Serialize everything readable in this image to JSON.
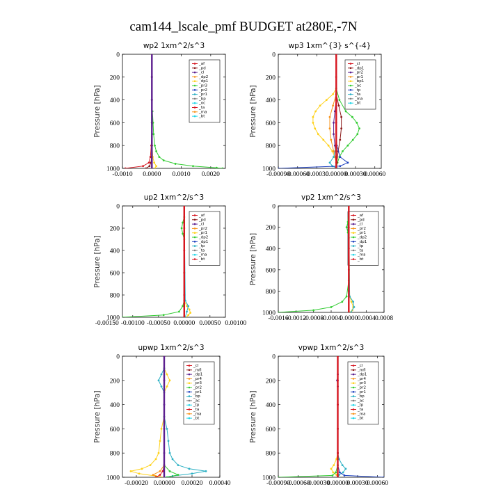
{
  "title": "cam144_lscale_pmf  BUDGET at280E,-7N",
  "colors": {
    "purple": "#5c1f8f",
    "red": "#d6151f",
    "orange": "#f7941d",
    "gold": "#ffd21a",
    "green": "#33cc33",
    "blue": "#1c3fbf",
    "teal": "#2bb0c4",
    "gray": "#808080",
    "cyan": "#20d6e8",
    "darkred": "#8b1a1a"
  },
  "chart_data": [
    {
      "type": "line",
      "title": "wp2   1xm^2/s^3",
      "ylabel": "Pressure [hPa]",
      "xlim": [
        -0.001,
        0.0025
      ],
      "ylim": [
        1000,
        0
      ],
      "xticks": [
        "-0.0010",
        "0.0000",
        "0.0010",
        "0.0020"
      ],
      "xtick_values": [
        -0.001,
        0,
        0.001,
        0.002
      ],
      "yticks": [
        "0",
        "200",
        "400",
        "600",
        "800",
        "1000"
      ],
      "legend_box": "top-right",
      "legend": [
        "_af",
        "_pd",
        "_cl",
        "_dp2",
        "_dp1",
        "_pr3",
        "_pr2",
        "_pr1",
        "_bp",
        "_oc",
        "_ta",
        "_ma",
        "_bt"
      ],
      "series": [
        {
          "name": "_pr1",
          "color": "#33cc33",
          "p": [
            0,
            200,
            400,
            500,
            600,
            700,
            800,
            850,
            900,
            930,
            960,
            980,
            995,
            1000
          ],
          "x": [
            0,
            0,
            0,
            2e-05,
            4e-05,
            6e-05,
            0.0001,
            0.00015,
            0.00025,
            0.0004,
            0.0008,
            0.0014,
            0.0022,
            0.0024
          ]
        },
        {
          "name": "_af",
          "color": "#d6151f",
          "p": [
            0,
            200,
            400,
            600,
            800,
            900,
            950,
            980,
            1000
          ],
          "x": [
            0,
            0,
            0,
            0,
            -2e-05,
            -5e-05,
            -0.0001,
            -0.0003,
            -0.0009
          ]
        },
        {
          "name": "_pr2",
          "color": "#ffd21a",
          "p": [
            0,
            600,
            800,
            900,
            950,
            980,
            1000
          ],
          "x": [
            0,
            0,
            1e-05,
            3e-05,
            8e-05,
            0.00015,
            0.0001
          ]
        },
        {
          "name": "_pd",
          "color": "#8b1a1a",
          "p": [
            0,
            800,
            900,
            950,
            980,
            1000
          ],
          "x": [
            0,
            0,
            -1e-05,
            -3e-05,
            -8e-05,
            -0.0002
          ]
        },
        {
          "name": "_dp2",
          "color": "#5c1f8f",
          "p": [
            0,
            200,
            400,
            600,
            800,
            1000
          ],
          "x": [
            0,
            0,
            0,
            0,
            0,
            0
          ]
        }
      ]
    },
    {
      "type": "line",
      "title": "wp3   1xm^{3} s^{-4}",
      "ylabel": "Pressure [hPa]",
      "xlim": [
        -0.0009,
        0.0007
      ],
      "ylim": [
        1000,
        0
      ],
      "xticks": [
        "-0.00090",
        "-0.00060",
        "-0.00030",
        "0.00000",
        "0.00030",
        "0.00060"
      ],
      "xtick_values": [
        -0.0009,
        -0.0006,
        -0.0003,
        0,
        0.0003,
        0.0006
      ],
      "yticks": [
        "0",
        "200",
        "400",
        "600",
        "800",
        "1000"
      ],
      "legend_box": "top-right",
      "legend": [
        "_cl",
        "_dp1",
        "_pr2",
        "_pr1",
        "_bp1",
        "_ac",
        "_tp",
        "_ta",
        "_ma",
        "_bt"
      ],
      "series": [
        {
          "name": "_pr2",
          "color": "#ffd21a",
          "p": [
            0,
            300,
            350,
            400,
            450,
            500,
            550,
            600,
            650,
            700,
            750,
            800,
            850,
            900,
            950,
            1000
          ],
          "x": [
            0,
            0,
            -5e-05,
            -0.00015,
            -0.00025,
            -0.00032,
            -0.00036,
            -0.00036,
            -0.00033,
            -0.00028,
            -0.0002,
            -0.00012,
            -6e-05,
            -2e-05,
            0,
            0
          ]
        },
        {
          "name": "_pr1",
          "color": "#f7941d",
          "p": [
            0,
            350,
            450,
            550,
            650,
            750,
            850,
            950,
            1000
          ],
          "x": [
            0,
            0,
            -5e-05,
            -0.0001,
            -0.0001,
            -8e-05,
            -4e-05,
            0,
            0
          ]
        },
        {
          "name": "_ac",
          "color": "#33cc33",
          "p": [
            0,
            300,
            400,
            500,
            550,
            600,
            650,
            700,
            750,
            800,
            850,
            900,
            950,
            1000
          ],
          "x": [
            0,
            0,
            5e-05,
            0.00015,
            0.00025,
            0.00032,
            0.00036,
            0.00033,
            0.00026,
            0.00018,
            0.0001,
            5e-05,
            2e-05,
            0
          ]
        },
        {
          "name": "_dp1",
          "color": "#8b1a1a",
          "p": [
            0,
            350,
            450,
            550,
            650,
            750,
            850,
            950,
            1000
          ],
          "x": [
            0,
            0,
            4e-05,
            8e-05,
            8e-05,
            6e-05,
            3e-05,
            1e-05,
            0
          ]
        },
        {
          "name": "_cl",
          "color": "#5c1f8f",
          "p": [
            0,
            400,
            500,
            600,
            700,
            800,
            900,
            1000
          ],
          "x": [
            0,
            0,
            -2e-05,
            -4e-05,
            -4e-05,
            -2e-05,
            0,
            0
          ]
        },
        {
          "name": "_tp",
          "color": "#2bb0c4",
          "p": [
            0,
            800,
            900,
            950,
            980,
            1000
          ],
          "x": [
            0,
            0,
            -4e-05,
            -0.0001,
            -6e-05,
            2e-05
          ]
        },
        {
          "name": "_ta",
          "color": "#1c3fbf",
          "p": [
            0,
            600,
            800,
            900,
            950,
            980,
            1000
          ],
          "x": [
            0,
            0,
            1e-05,
            6e-05,
            0.00018,
            6e-05,
            -0.0009
          ]
        },
        {
          "name": "_bp1",
          "color": "#d6151f",
          "p": [
            0,
            200,
            400,
            600,
            800,
            1000
          ],
          "x": [
            0,
            0,
            0,
            0,
            0,
            0
          ]
        }
      ]
    },
    {
      "type": "line",
      "title": "up2   1xm^2/s^3",
      "ylabel": "Pressure [hPa]",
      "xlim": [
        -0.0012,
        0.0008
      ],
      "ylim": [
        1000,
        0
      ],
      "xticks": [
        "-0.00150",
        "-0.00100",
        "-0.00050",
        "0.00000",
        "0.00050",
        "0.00100"
      ],
      "xtick_values": [
        -0.0015,
        -0.001,
        -0.0005,
        0,
        0.0005,
        0.001
      ],
      "yticks": [
        "0",
        "200",
        "400",
        "600",
        "800",
        "1000"
      ],
      "legend_box": "top-right",
      "legend": [
        "_af",
        "_pd",
        "_cl",
        "_pr2",
        "_pr1",
        "_dp2",
        "_dp1",
        "_tp",
        "_ta",
        "_ma",
        "_bt"
      ],
      "series": [
        {
          "name": "_dp2",
          "color": "#33cc33",
          "p": [
            0,
            100,
            150,
            200,
            250,
            300,
            600,
            850,
            900,
            950,
            980,
            1000
          ],
          "x": [
            0,
            0,
            -3e-05,
            -5e-05,
            -3e-05,
            0,
            0,
            0,
            -3e-05,
            -0.0001,
            -0.0004,
            -0.0012
          ]
        },
        {
          "name": "_pr1",
          "color": "#ffd21a",
          "p": [
            0,
            850,
            900,
            930,
            960,
            980,
            1000
          ],
          "x": [
            0,
            0,
            5e-05,
            0.0001,
            0.00012,
            8e-05,
            4e-05
          ]
        },
        {
          "name": "_tp",
          "color": "#2bb0c4",
          "p": [
            0,
            850,
            900,
            950,
            1000
          ],
          "x": [
            0,
            2e-05,
            8e-05,
            5e-05,
            2e-05
          ]
        },
        {
          "name": "_pd",
          "color": "#d6151f",
          "p": [
            0,
            200,
            400,
            600,
            800,
            1000
          ],
          "x": [
            0,
            0,
            0,
            0,
            0,
            0
          ]
        }
      ]
    },
    {
      "type": "line",
      "title": "vp2   1xm^2/s^3",
      "ylabel": "Pressure [hPa]",
      "xlim": [
        -0.0016,
        0.0008
      ],
      "ylim": [
        1000,
        0
      ],
      "xticks": [
        "-0.0016",
        "-0.0012",
        "-0.0008",
        "-0.0004",
        "0.0000",
        "0.0004",
        "0.0008"
      ],
      "xtick_values": [
        -0.0016,
        -0.0012,
        -0.0008,
        -0.0004,
        0,
        0.0004,
        0.0008
      ],
      "yticks": [
        "0",
        "200",
        "400",
        "600",
        "800",
        "1000"
      ],
      "legend_box": "top-right",
      "legend": [
        "_af",
        "_pd",
        "_cl",
        "_pr2",
        "_pr1",
        "_dp2",
        "_dp1",
        "_tp",
        "_ta",
        "_ma",
        "_bt"
      ],
      "series": [
        {
          "name": "_dp2",
          "color": "#33cc33",
          "p": [
            0,
            150,
            200,
            250,
            300,
            700,
            850,
            900,
            950,
            980,
            1000
          ],
          "x": [
            0,
            -2e-05,
            -5e-05,
            -2e-05,
            0,
            0,
            -5e-05,
            -0.00015,
            -0.0004,
            -0.0008,
            -0.0016
          ]
        },
        {
          "name": "_pr1",
          "color": "#ffd21a",
          "p": [
            0,
            850,
            900,
            950,
            980,
            1000
          ],
          "x": [
            0,
            2e-05,
            6e-05,
            0.0001,
            8e-05,
            3e-05
          ]
        },
        {
          "name": "_tp",
          "color": "#2bb0c4",
          "p": [
            0,
            850,
            900,
            950,
            1000
          ],
          "x": [
            0,
            2e-05,
            0.0001,
            0.00012,
            5e-05
          ]
        },
        {
          "name": "_pd",
          "color": "#d6151f",
          "p": [
            0,
            200,
            400,
            600,
            800,
            1000
          ],
          "x": [
            0,
            0,
            0,
            0,
            0,
            0
          ]
        }
      ]
    },
    {
      "type": "line",
      "title": "upwp   1xm^2/s^3",
      "ylabel": "Pressure [hPa]",
      "xlim": [
        -0.0003,
        0.0004
      ],
      "ylim": [
        1000,
        0
      ],
      "xticks": [
        "-0.00020",
        "0.00000",
        "0.00020",
        "0.00040"
      ],
      "xtick_values": [
        -0.0002,
        0,
        0.0002,
        0.0004
      ],
      "yticks": [
        "0",
        "200",
        "400",
        "600",
        "800",
        "1000"
      ],
      "legend_box": "top-right",
      "legend": [
        "_cl",
        "_mfl",
        "_dp1",
        "_pr4",
        "_pr3",
        "_pr2",
        "_pr1",
        "_bp",
        "_ac",
        "_tp",
        "_ta",
        "_ma",
        "_bt"
      ],
      "series": [
        {
          "name": "_pr2",
          "color": "#ffd21a",
          "p": [
            0,
            100,
            150,
            200,
            250,
            300,
            500,
            600,
            700,
            800,
            850,
            900,
            930,
            950,
            970,
            990,
            1000
          ],
          "x": [
            0,
            0,
            2e-05,
            4e-05,
            2e-05,
            0,
            0,
            -2e-05,
            -3e-05,
            -4e-05,
            -6e-05,
            -0.0001,
            -0.00016,
            -0.00024,
            -0.00018,
            -6e-05,
            0
          ]
        },
        {
          "name": "_tp",
          "color": "#2bb0c4",
          "p": [
            0,
            100,
            150,
            200,
            250,
            300,
            500,
            600,
            700,
            800,
            850,
            900,
            930,
            950,
            970,
            990,
            1000
          ],
          "x": [
            0,
            0,
            -2e-05,
            -4e-05,
            -2e-05,
            0,
            0,
            2e-05,
            3e-05,
            4e-05,
            6e-05,
            0.0001,
            0.00018,
            0.0003,
            0.0002,
            6e-05,
            0
          ]
        },
        {
          "name": "_ac",
          "color": "#33cc33",
          "p": [
            0,
            900,
            950,
            980,
            1000
          ],
          "x": [
            0,
            0,
            4e-05,
            0.0001,
            2e-05
          ]
        },
        {
          "name": "_pr1",
          "color": "#f7941d",
          "p": [
            0,
            900,
            950,
            980,
            1000
          ],
          "x": [
            0,
            0,
            -3e-05,
            -8e-05,
            -4e-05
          ]
        },
        {
          "name": "_mfl",
          "color": "#d6151f",
          "p": [
            0,
            900,
            950,
            980,
            1000
          ],
          "x": [
            0,
            0,
            -1e-05,
            -3e-05,
            -6e-05
          ]
        },
        {
          "name": "_cl",
          "color": "#5c1f8f",
          "p": [
            0,
            200,
            400,
            600,
            800,
            1000
          ],
          "x": [
            0,
            0,
            0,
            0,
            0,
            0
          ]
        }
      ]
    },
    {
      "type": "line",
      "title": "vpwp   1xm^2/s^3",
      "ylabel": "Pressure [hPa]",
      "xlim": [
        -0.0009,
        0.0007
      ],
      "ylim": [
        1000,
        0
      ],
      "xticks": [
        "-0.00090",
        "-0.00060",
        "-0.00030",
        "0.00000",
        "0.00030",
        "0.00060"
      ],
      "xtick_values": [
        -0.0009,
        -0.0006,
        -0.0003,
        0,
        0.0003,
        0.0006
      ],
      "yticks": [
        "0",
        "200",
        "400",
        "600",
        "800",
        "1000"
      ],
      "legend_box": "top-right",
      "legend": [
        "_cl",
        "_mfl",
        "_dp1",
        "_pr4",
        "_pr3",
        "_pr2",
        "_pr1",
        "_bp",
        "_ac",
        "_tp",
        "_ta",
        "_ma",
        "_bt"
      ],
      "series": [
        {
          "name": "_pr2",
          "color": "#ffd21a",
          "p": [
            0,
            800,
            850,
            900,
            930,
            960,
            980,
            1000
          ],
          "x": [
            0,
            0,
            -2e-05,
            -6e-05,
            -0.0001,
            -7e-05,
            -2e-05,
            0
          ]
        },
        {
          "name": "_tp",
          "color": "#2bb0c4",
          "p": [
            0,
            800,
            850,
            900,
            930,
            960,
            980,
            1000
          ],
          "x": [
            0,
            0,
            2e-05,
            7e-05,
            0.00012,
            8e-05,
            2e-05,
            0
          ]
        },
        {
          "name": "_ta",
          "color": "#1c3fbf",
          "p": [
            0,
            900,
            960,
            985,
            1000
          ],
          "x": [
            0,
            0,
            3e-05,
            0.0001,
            0.0007
          ]
        },
        {
          "name": "_ac",
          "color": "#33cc33",
          "p": [
            0,
            900,
            960,
            985,
            1000
          ],
          "x": [
            0,
            0,
            -3e-05,
            -8e-05,
            -0.0009
          ]
        },
        {
          "name": "_cl",
          "color": "#5c1f8f",
          "p": [
            0,
            150,
            200,
            250,
            400,
            600,
            800,
            1000
          ],
          "x": [
            0,
            0,
            -1e-05,
            0,
            0,
            0,
            0,
            0
          ]
        },
        {
          "name": "_mfl",
          "color": "#d6151f",
          "p": [
            0,
            200,
            400,
            600,
            800,
            1000
          ],
          "x": [
            0,
            0,
            0,
            0,
            0,
            0
          ]
        }
      ]
    }
  ]
}
